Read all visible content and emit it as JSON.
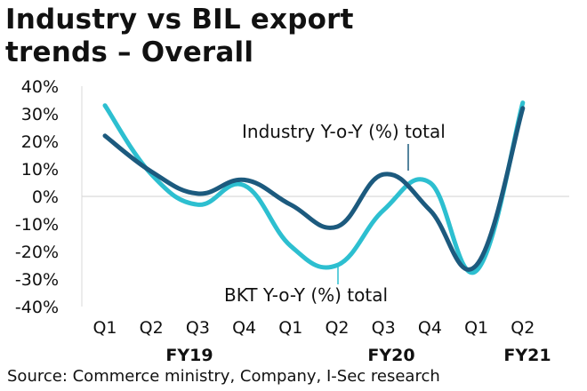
{
  "title_line1": "Industry vs BIL export",
  "title_line2": "trends – Overall",
  "source": "Source: Commerce ministry, Company, I-Sec research",
  "chart_data": {
    "type": "line",
    "categories": [
      "Q1",
      "Q2",
      "Q3",
      "Q4",
      "Q1",
      "Q2",
      "Q3",
      "Q4",
      "Q1",
      "Q2"
    ],
    "fiscal_years": [
      "FY19",
      "FY20",
      "FY21"
    ],
    "yticks": [
      "40%",
      "30%",
      "20%",
      "10%",
      "0%",
      "-10%",
      "-20%",
      "-30%",
      "-40%"
    ],
    "ylim": [
      -40,
      40
    ],
    "series": [
      {
        "name": "Industry Y-o-Y (%) total",
        "color": "#1c5a7e",
        "values": [
          22,
          9,
          1,
          6,
          -3,
          -11,
          8,
          -5,
          -25,
          32
        ]
      },
      {
        "name": "BKT Y-o-Y (%) total",
        "color": "#2dbfd0",
        "values": [
          33,
          8,
          -3,
          4,
          -18,
          -25,
          -5,
          5,
          -27,
          34
        ]
      }
    ]
  }
}
